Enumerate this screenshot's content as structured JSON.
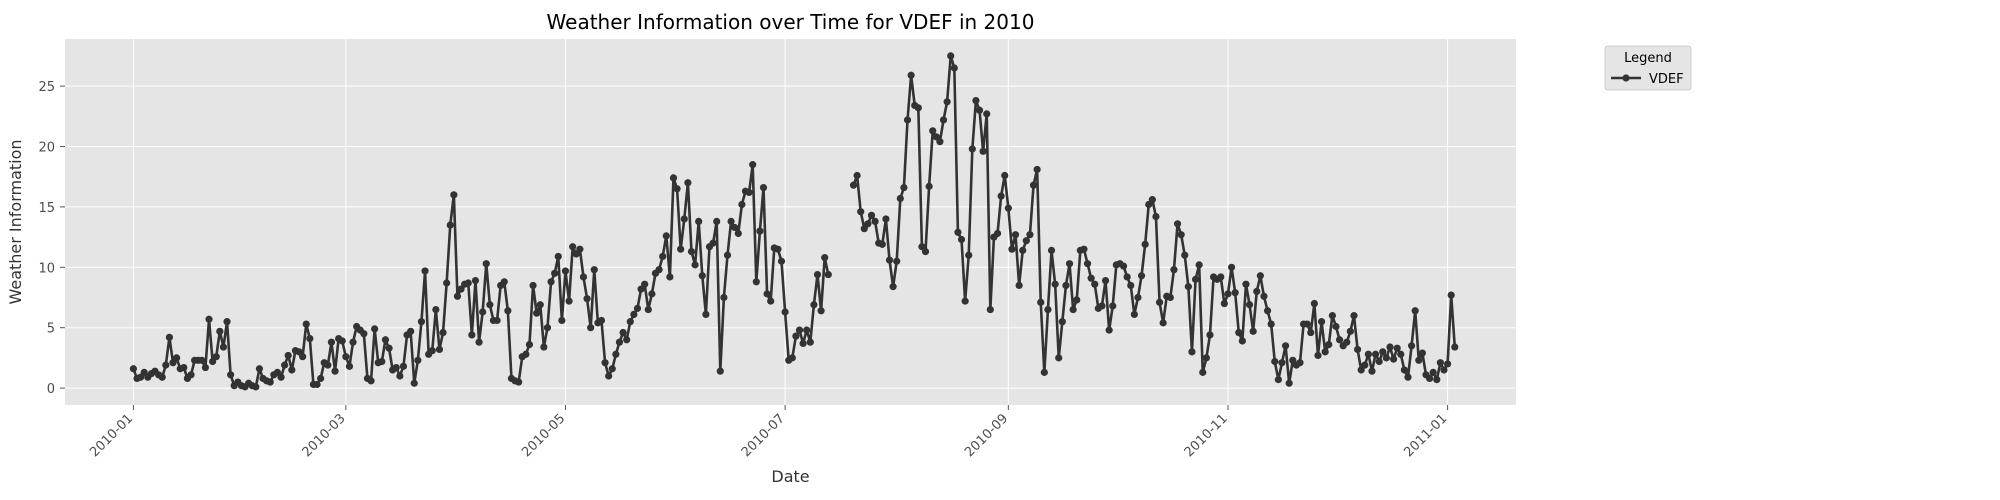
{
  "chart_data": {
    "type": "line",
    "title": "Weather Information over Time for VDEF in 2010",
    "xlabel": "Date",
    "ylabel": "Weather Information",
    "xlim": [
      "2009-12-13",
      "2011-01-20"
    ],
    "ylim": [
      -1.4,
      28.9
    ],
    "x_ticks": [
      "2010-01",
      "2010-03",
      "2010-05",
      "2010-07",
      "2010-09",
      "2010-11",
      "2011-01"
    ],
    "y_ticks": [
      0,
      5,
      10,
      15,
      20,
      25
    ],
    "grid": true,
    "legend": {
      "title": "Legend",
      "placement": "outside top-right"
    },
    "line_color": "#333333",
    "plot_background": "#e5e5e5",
    "x_start": "2010-01-01",
    "x_step": "1 day",
    "series": [
      {
        "name": "VDEF",
        "values": [
          1.6,
          0.8,
          0.9,
          1.3,
          0.9,
          1.2,
          1.4,
          1.1,
          0.9,
          1.9,
          4.2,
          2.1,
          2.5,
          1.6,
          1.7,
          0.8,
          1.1,
          2.3,
          2.3,
          2.3,
          1.7,
          5.7,
          2.2,
          2.6,
          4.7,
          3.4,
          5.5,
          1.1,
          0.2,
          0.5,
          0.2,
          0.1,
          0.4,
          0.2,
          0.1,
          1.6,
          0.8,
          0.6,
          0.5,
          1.1,
          1.3,
          0.9,
          1.9,
          2.7,
          1.5,
          3.1,
          3.0,
          2.6,
          5.3,
          4.1,
          0.3,
          0.3,
          0.8,
          2.1,
          1.9,
          3.8,
          1.4,
          4.1,
          3.9,
          2.6,
          1.8,
          3.8,
          5.1,
          4.8,
          4.5,
          0.8,
          0.6,
          4.9,
          2.1,
          2.2,
          4.0,
          3.3,
          1.5,
          1.7,
          1.0,
          1.8,
          4.4,
          4.7,
          0.4,
          2.3,
          5.5,
          9.7,
          2.8,
          3.1,
          6.5,
          3.2,
          4.6,
          8.7,
          13.5,
          16.0,
          7.6,
          8.2,
          8.6,
          8.7,
          4.4,
          8.9,
          3.8,
          6.3,
          10.3,
          6.9,
          5.6,
          5.6,
          8.5,
          8.8,
          6.4,
          0.8,
          0.6,
          0.5,
          2.6,
          2.8,
          3.6,
          8.5,
          6.2,
          6.9,
          3.4,
          5.0,
          8.8,
          9.5,
          10.9,
          5.6,
          9.7,
          7.2,
          11.7,
          11.1,
          11.5,
          9.2,
          7.4,
          5.0,
          9.8,
          5.4,
          5.6,
          2.1,
          1.0,
          1.6,
          2.8,
          3.8,
          4.6,
          4.0,
          5.5,
          6.1,
          6.6,
          8.2,
          8.6,
          6.5,
          7.8,
          9.5,
          9.8,
          10.9,
          12.6,
          9.2,
          17.4,
          16.5,
          11.5,
          14.0,
          17.0,
          11.3,
          10.2,
          13.8,
          9.3,
          6.1,
          11.7,
          12.0,
          13.8,
          1.4,
          7.5,
          11.0,
          13.8,
          13.3,
          12.8,
          15.2,
          16.3,
          16.2,
          18.5,
          8.8,
          13.0,
          16.6,
          7.8,
          7.2,
          11.6,
          11.5,
          10.5,
          6.3,
          2.3,
          2.5,
          4.3,
          4.8,
          3.7,
          4.8,
          3.8,
          6.9,
          9.4,
          6.4,
          10.8,
          9.4,
          null,
          null,
          null,
          null,
          null,
          null,
          16.8,
          17.6,
          14.6,
          13.2,
          13.6,
          14.3,
          13.8,
          12.0,
          11.9,
          14.0,
          10.6,
          8.4,
          10.5,
          15.7,
          16.6,
          22.2,
          25.9,
          23.4,
          23.2,
          11.7,
          11.3,
          16.7,
          21.3,
          20.8,
          20.4,
          22.2,
          23.7,
          27.5,
          26.5,
          12.9,
          12.3,
          7.2,
          11.0,
          19.8,
          23.8,
          23.0,
          19.6,
          22.7,
          6.5,
          12.5,
          12.8,
          15.9,
          17.6,
          14.9,
          11.5,
          12.7,
          8.5,
          11.4,
          12.2,
          12.7,
          16.8,
          18.1,
          7.1,
          1.3,
          6.5,
          11.4,
          8.6,
          2.5,
          5.5,
          8.5,
          10.3,
          6.5,
          7.3,
          11.4,
          11.5,
          10.3,
          9.1,
          8.6,
          6.6,
          6.8,
          8.9,
          4.8,
          6.8,
          10.2,
          10.3,
          10.1,
          9.2,
          8.5,
          6.1,
          7.5,
          9.3,
          11.9,
          15.2,
          15.6,
          14.2,
          7.1,
          5.4,
          7.6,
          7.5,
          9.8,
          13.6,
          12.7,
          11.0,
          8.4,
          3.0,
          9.0,
          10.2,
          1.3,
          2.5,
          4.4,
          9.2,
          9.0,
          9.2,
          7.0,
          7.8,
          10.0,
          7.9,
          4.6,
          3.9,
          8.6,
          6.9,
          4.7,
          8.0,
          9.3,
          7.6,
          6.4,
          5.3,
          2.2,
          0.7,
          2.1,
          3.5,
          0.4,
          2.3,
          1.9,
          2.1,
          5.3,
          5.3,
          4.6,
          7.0,
          2.7,
          5.5,
          3.0,
          3.6,
          6.0,
          5.1,
          4.0,
          3.5,
          3.8,
          4.7,
          6.0,
          3.2,
          1.5,
          1.9,
          2.8,
          1.4,
          2.8,
          2.2,
          3.0,
          2.5,
          3.4,
          2.4,
          3.3,
          2.8,
          1.5,
          0.9,
          3.5,
          6.4,
          2.3,
          2.9,
          1.1,
          0.8,
          1.3,
          0.7,
          2.1,
          1.5,
          2.0,
          7.7,
          3.4
        ]
      }
    ]
  }
}
